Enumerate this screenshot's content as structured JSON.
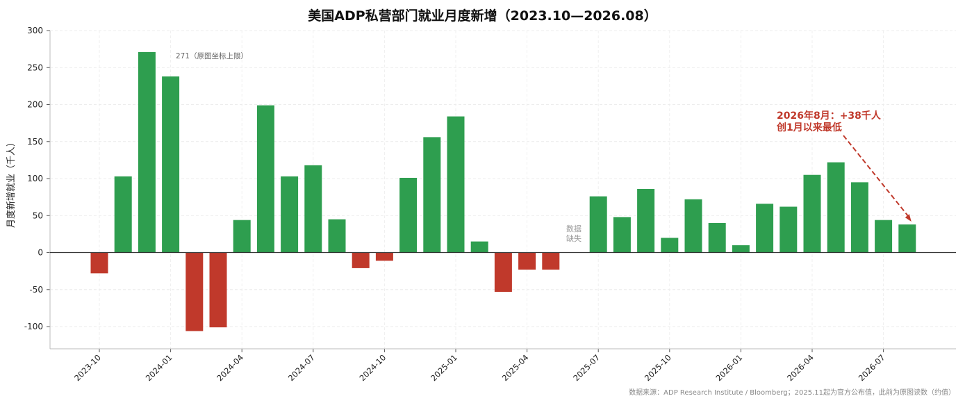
{
  "chart_data": {
    "type": "bar",
    "title": "美国ADP私营部门就业月度新增（2023.10—2026.08）",
    "xlabel": "",
    "ylabel": "月度新增就业（千人）",
    "ylim": [
      -130,
      300
    ],
    "yticks": [
      -100,
      -50,
      0,
      50,
      100,
      150,
      200,
      250,
      300
    ],
    "xtick_labels": [
      "2023-10",
      "2024-01",
      "2024-04",
      "2024-07",
      "2024-10",
      "2025-01",
      "2025-04",
      "2025-07",
      "2025-10",
      "2026-01",
      "2026-04",
      "2026-07"
    ],
    "categories": [
      "2023-10",
      "2023-11",
      "2023-12",
      "2024-01",
      "2024-02",
      "2024-03",
      "2024-04",
      "2024-05",
      "2024-06",
      "2024-07",
      "2024-08",
      "2024-09",
      "2024-10",
      "2024-11",
      "2024-12",
      "2025-01",
      "2025-02",
      "2025-03",
      "2025-04",
      "2025-05",
      "2025-06",
      "2025-07",
      "2025-08",
      "2025-09",
      "2025-10",
      "2025-11",
      "2025-12",
      "2026-01",
      "2026-02",
      "2026-03",
      "2026-04",
      "2026-05",
      "2026-06",
      "2026-07",
      "2026-08"
    ],
    "values": [
      -28,
      103,
      271,
      238,
      -106,
      -101,
      44,
      199,
      103,
      118,
      45,
      -21,
      -11,
      101,
      156,
      184,
      15,
      -53,
      -23,
      -23,
      null,
      76,
      48,
      86,
      20,
      72,
      40,
      10,
      66,
      62,
      105,
      122,
      95,
      44,
      38
    ],
    "colors": {
      "positive": "#2e9e4f",
      "negative": "#c0392b",
      "annotation": "#c0392b"
    },
    "grid": true,
    "annotations": {
      "cap_label": "271（原图坐标上限）",
      "gap_label_line1": "数据",
      "gap_label_line2": "缺失",
      "highlight_line1": "2026年8月：+38千人",
      "highlight_line2": "创1月以来最低"
    },
    "source": "数据来源：ADP Research Institute / Bloomberg；2025.11起为官方公布值，此前为原图读数（约值）"
  }
}
